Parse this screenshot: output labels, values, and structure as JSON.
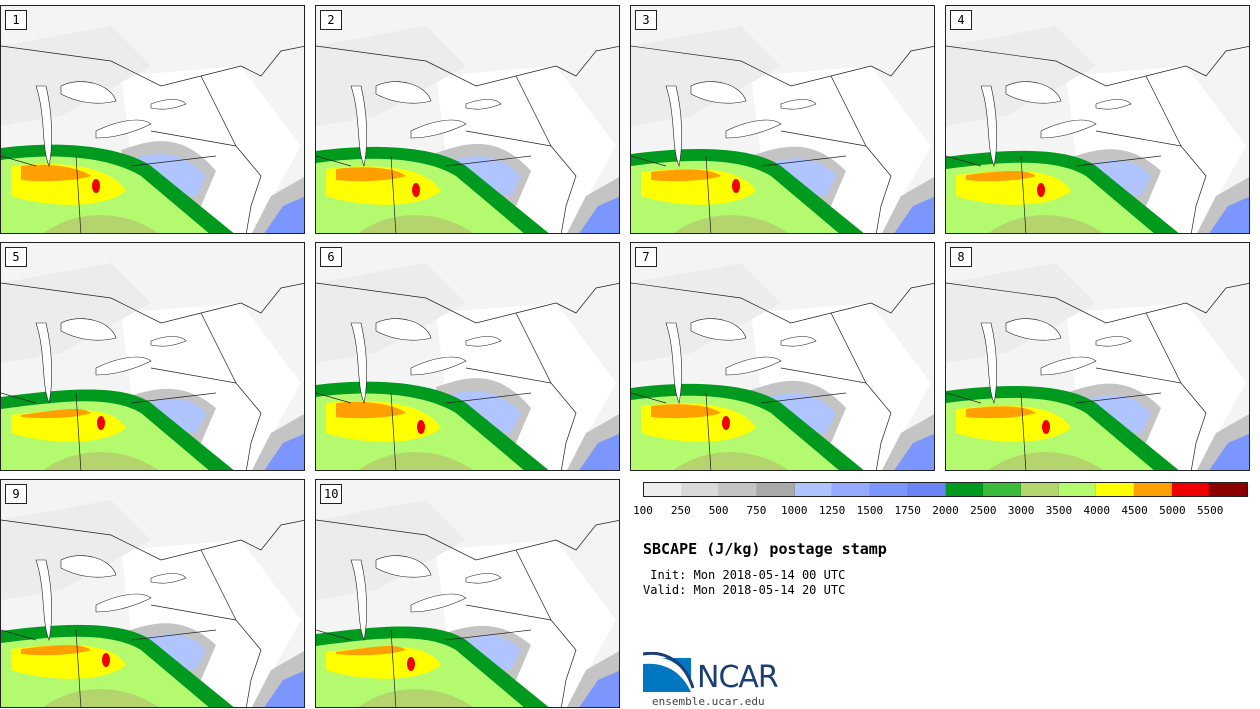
{
  "panels": [
    {
      "label": "1"
    },
    {
      "label": "2"
    },
    {
      "label": "3"
    },
    {
      "label": "4"
    },
    {
      "label": "5"
    },
    {
      "label": "6"
    },
    {
      "label": "7"
    },
    {
      "label": "8"
    },
    {
      "label": "9"
    },
    {
      "label": "10"
    }
  ],
  "colorbar": {
    "colors": [
      "#eeeeee",
      "#dadada",
      "#c4c4c4",
      "#a9a9a9",
      "#b0c4ff",
      "#93aaff",
      "#7c96ff",
      "#6a84f5",
      "#009a1e",
      "#3cba3c",
      "#b4d46e",
      "#b4fa6e",
      "#ffff00",
      "#ffa000",
      "#f00000",
      "#8c0000"
    ],
    "tick_labels": [
      "100",
      "250",
      "500",
      "750",
      "1000",
      "1250",
      "1500",
      "1750",
      "2000",
      "2500",
      "3000",
      "3500",
      "4000",
      "4500",
      "5000",
      "5500"
    ]
  },
  "title": "SBCAPE (J/kg) postage stamp",
  "init": " Init: Mon 2018-05-14 00 UTC",
  "valid": "Valid: Mon 2018-05-14 20 UTC",
  "logo": {
    "text": "NCAR",
    "brand_color": "#1b3f73",
    "swoosh_color": "#0077c0"
  },
  "site": "ensemble.ucar.edu"
}
